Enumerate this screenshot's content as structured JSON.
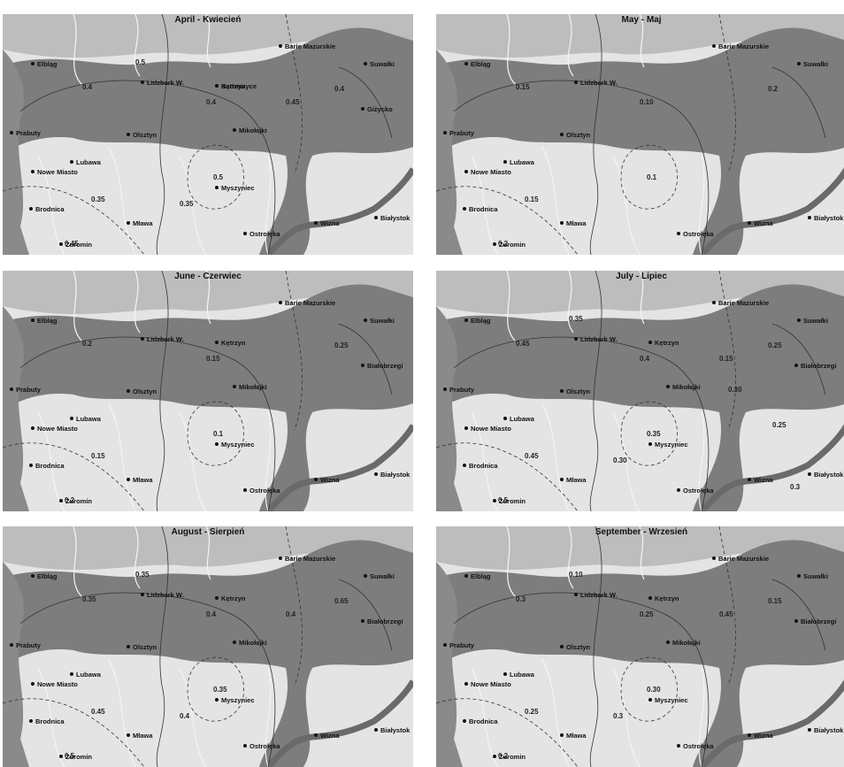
{
  "panels": [
    {
      "title": "April - Kwiecień",
      "cities": [
        "Elbląg",
        "Lidzbark W.",
        "Bartoszyce",
        "Barie Mazurskie",
        "Suwałki",
        "Kętrzyn",
        "Prabuty",
        "Olsztyn",
        "Mikołajki",
        "Giżycko",
        "Lubawa",
        "Nowe Miasto",
        "Myszyniec",
        "Brodnica",
        "Mława",
        "Żuromin",
        "Ostrołęka",
        "Wizna",
        "Białystok"
      ],
      "isolines": [
        "0.4",
        "0.4",
        "0.5",
        "0.35",
        "0.45",
        "0.4",
        "0.35",
        "0.45",
        "0.5"
      ]
    },
    {
      "title": "May - Maj",
      "cities": [
        "Elbląg",
        "Lidzbark W.",
        "Barie Mazurskie",
        "Suwałki",
        "Prabuty",
        "Olsztyn",
        "Lubawa",
        "Nowe Miasto",
        "Brodnica",
        "Mława",
        "Żuromin",
        "Ostrołęka",
        "Wizna",
        "Białystok"
      ],
      "isolines": [
        "0.15",
        "0.10",
        "0.1",
        "0.15",
        "0.2",
        "0.2"
      ]
    },
    {
      "title": "June - Czerwiec",
      "cities": [
        "Elbląg",
        "Lidzbark W.",
        "Kętrzyn",
        "Barie Mazurskie",
        "Suwałki",
        "Prabuty",
        "Olsztyn",
        "Mikołajki",
        "Białobrzegi",
        "Lubawa",
        "Nowe Miasto",
        "Myszyniec",
        "Brodnica",
        "Mława",
        "Żuromin",
        "Ostrołęka",
        "Wizna",
        "Białystok"
      ],
      "isolines": [
        "0.2",
        "0.15",
        "0.1",
        "0.15",
        "0.2",
        "0.25"
      ]
    },
    {
      "title": "July - Lipiec",
      "cities": [
        "Elbląg",
        "Lidzbark W.",
        "Kętrzyn",
        "Barie Mazurskie",
        "Suwałki",
        "Prabuty",
        "Olsztyn",
        "Mikołajki",
        "Białobrzegi",
        "Lubawa",
        "Nowe Miasto",
        "Myszyniec",
        "Brodnica",
        "Mława",
        "Żuromin",
        "Ostrołęka",
        "Wizna",
        "Białystok"
      ],
      "isolines": [
        "0.45",
        "0.4",
        "0.35",
        "0.45",
        "0.5",
        "0.25",
        "0.30",
        "0.15",
        "0.35",
        "0.30",
        "0.25",
        "0.3"
      ]
    },
    {
      "title": "August - Sierpień",
      "cities": [
        "Elbląg",
        "Lidzbark W.",
        "Kętrzyn",
        "Barie Mazurskie",
        "Suwałki",
        "Prabuty",
        "Olsztyn",
        "Mikołajki",
        "Białobrzegi",
        "Lubawa",
        "Nowe Miasto",
        "Myszyniec",
        "Brodnica",
        "Mława",
        "Żuromin",
        "Ostrołęka",
        "Wizna",
        "Białystok"
      ],
      "isolines": [
        "0.35",
        "0.4",
        "0.35",
        "0.45",
        "0.5",
        "0.65",
        "0.4",
        "0.4",
        "0.35"
      ]
    },
    {
      "title": "September - Wrzesień",
      "cities": [
        "Elbląg",
        "Lidzbark W.",
        "Kętrzyn",
        "Barie Mazurskie",
        "Suwałki",
        "Prabuty",
        "Olsztyn",
        "Mikołajki",
        "Białobrzegi",
        "Lubawa",
        "Nowe Miasto",
        "Myszyniec",
        "Brodnica",
        "Mława",
        "Żuromin",
        "Ostrołęka",
        "Wizna",
        "Białystok"
      ],
      "isolines": [
        "0.3",
        "0.25",
        "0.30",
        "0.25",
        "0.2",
        "0.15",
        "0.3",
        "0.45",
        "0.10"
      ]
    }
  ]
}
